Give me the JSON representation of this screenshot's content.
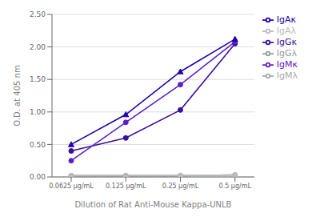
{
  "chart_data": {
    "type": "line",
    "xlabel": "Dilution of Rat Anti-Mouse Kappa-UNLB",
    "ylabel": "O.D. at 405 nm",
    "categories": [
      "0.0625 μg/mL",
      "0.125 μg/mL",
      "0.25 μg/mL",
      "0.5 μg/mL"
    ],
    "series": [
      {
        "name": "IgGκ",
        "color": "#3B10A0",
        "marker": "circle",
        "line_style": "solid",
        "values": [
          0.4,
          0.6,
          1.03,
          2.05
        ]
      },
      {
        "name": "IgMκ",
        "color": "#5B20CC",
        "marker": "circle",
        "line_style": "solid",
        "values": [
          0.25,
          0.84,
          1.42,
          2.08
        ]
      },
      {
        "name": "IgAκ",
        "color": "#2200AA",
        "marker": "triangle",
        "line_style": "solid",
        "values": [
          0.5,
          0.96,
          1.62,
          2.12
        ]
      },
      {
        "name": "IgGλ",
        "color": "#999999",
        "marker": "circle",
        "line_style": "solid",
        "values": [
          0.02,
          0.02,
          0.02,
          0.03
        ]
      },
      {
        "name": "IgMλ",
        "color": "#AAAAAA",
        "marker": "circle",
        "line_style": "solid",
        "values": [
          0.02,
          0.02,
          0.02,
          0.03
        ]
      },
      {
        "name": "IgAλ",
        "color": "#BBBBBB",
        "marker": "circle",
        "line_style": "solid",
        "values": [
          0.02,
          0.02,
          0.02,
          0.03
        ]
      }
    ],
    "ylim": [
      0,
      2.5
    ],
    "yticks": [
      {
        "value": 0,
        "label": "0.00"
      },
      {
        "value": 0.5,
        "label": "0.50"
      },
      {
        "value": 1,
        "label": "1.00"
      },
      {
        "value": 1.5,
        "label": "1.50"
      },
      {
        "value": 2,
        "label": "2.00"
      },
      {
        "value": 2.5,
        "label": "2.50"
      }
    ],
    "grid": true,
    "legend": "right"
  }
}
